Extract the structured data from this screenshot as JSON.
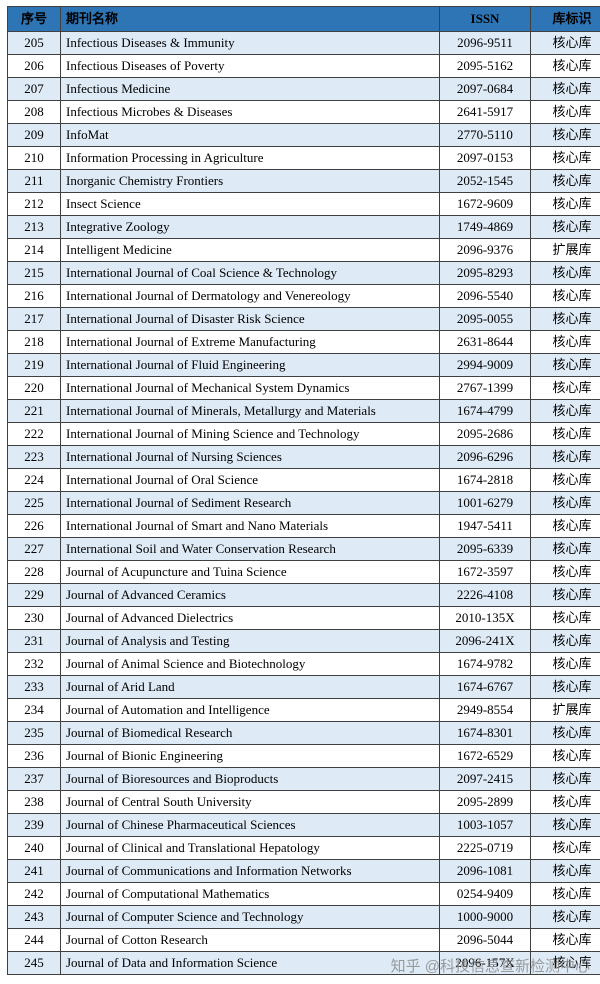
{
  "table": {
    "headers": {
      "no": "序号",
      "name": "期刊名称",
      "issn": "ISSN",
      "tag": "库标识"
    },
    "rows": [
      [
        "205",
        "Infectious Diseases & Immunity",
        "2096-9511",
        "核心库"
      ],
      [
        "206",
        "Infectious Diseases of Poverty",
        "2095-5162",
        "核心库"
      ],
      [
        "207",
        "Infectious Medicine",
        "2097-0684",
        "核心库"
      ],
      [
        "208",
        "Infectious Microbes & Diseases",
        "2641-5917",
        "核心库"
      ],
      [
        "209",
        "InfoMat",
        "2770-5110",
        "核心库"
      ],
      [
        "210",
        "Information Processing in Agriculture",
        "2097-0153",
        "核心库"
      ],
      [
        "211",
        "Inorganic Chemistry Frontiers",
        "2052-1545",
        "核心库"
      ],
      [
        "212",
        "Insect Science",
        "1672-9609",
        "核心库"
      ],
      [
        "213",
        "Integrative Zoology",
        "1749-4869",
        "核心库"
      ],
      [
        "214",
        "Intelligent Medicine",
        "2096-9376",
        "扩展库"
      ],
      [
        "215",
        "International Journal of Coal Science & Technology",
        "2095-8293",
        "核心库"
      ],
      [
        "216",
        "International Journal of Dermatology and Venereology",
        "2096-5540",
        "核心库"
      ],
      [
        "217",
        "International Journal of Disaster Risk Science",
        "2095-0055",
        "核心库"
      ],
      [
        "218",
        "International Journal of Extreme Manufacturing",
        "2631-8644",
        "核心库"
      ],
      [
        "219",
        "International Journal of Fluid Engineering",
        "2994-9009",
        "核心库"
      ],
      [
        "220",
        "International Journal of Mechanical System Dynamics",
        "2767-1399",
        "核心库"
      ],
      [
        "221",
        "International Journal of Minerals, Metallurgy and Materials",
        "1674-4799",
        "核心库"
      ],
      [
        "222",
        "International Journal of Mining Science and Technology",
        "2095-2686",
        "核心库"
      ],
      [
        "223",
        "International Journal of Nursing Sciences",
        "2096-6296",
        "核心库"
      ],
      [
        "224",
        "International Journal of Oral Science",
        "1674-2818",
        "核心库"
      ],
      [
        "225",
        "International Journal of Sediment Research",
        "1001-6279",
        "核心库"
      ],
      [
        "226",
        "International Journal of Smart and Nano Materials",
        "1947-5411",
        "核心库"
      ],
      [
        "227",
        "International Soil and Water Conservation Research",
        "2095-6339",
        "核心库"
      ],
      [
        "228",
        "Journal of Acupuncture and Tuina Science",
        "1672-3597",
        "核心库"
      ],
      [
        "229",
        "Journal of Advanced Ceramics",
        "2226-4108",
        "核心库"
      ],
      [
        "230",
        "Journal of Advanced Dielectrics",
        "2010-135X",
        "核心库"
      ],
      [
        "231",
        "Journal of Analysis and Testing",
        "2096-241X",
        "核心库"
      ],
      [
        "232",
        "Journal of Animal Science and Biotechnology",
        "1674-9782",
        "核心库"
      ],
      [
        "233",
        "Journal of Arid Land",
        "1674-6767",
        "核心库"
      ],
      [
        "234",
        "Journal of Automation and Intelligence",
        "2949-8554",
        "扩展库"
      ],
      [
        "235",
        "Journal of Biomedical Research",
        "1674-8301",
        "核心库"
      ],
      [
        "236",
        "Journal of Bionic Engineering",
        "1672-6529",
        "核心库"
      ],
      [
        "237",
        "Journal of Bioresources and Bioproducts",
        "2097-2415",
        "核心库"
      ],
      [
        "238",
        "Journal of Central South University",
        "2095-2899",
        "核心库"
      ],
      [
        "239",
        "Journal of Chinese Pharmaceutical Sciences",
        "1003-1057",
        "核心库"
      ],
      [
        "240",
        "Journal of Clinical and Translational Hepatology",
        "2225-0719",
        "核心库"
      ],
      [
        "241",
        "Journal of Communications and Information Networks",
        "2096-1081",
        "核心库"
      ],
      [
        "242",
        "Journal of Computational Mathematics",
        "0254-9409",
        "核心库"
      ],
      [
        "243",
        "Journal of Computer Science and Technology",
        "1000-9000",
        "核心库"
      ],
      [
        "244",
        "Journal of Cotton Research",
        "2096-5044",
        "核心库"
      ],
      [
        "245",
        "Journal of Data and Information Science",
        "2096-157X",
        "核心库"
      ]
    ]
  },
  "watermark": {
    "text": "知乎 @科技信息查新检测中心"
  },
  "colors": {
    "header_bg": "#2e75b6",
    "stripe_bg": "#deeaf6",
    "border": "#404040",
    "watermark": "#8c8c8c"
  }
}
